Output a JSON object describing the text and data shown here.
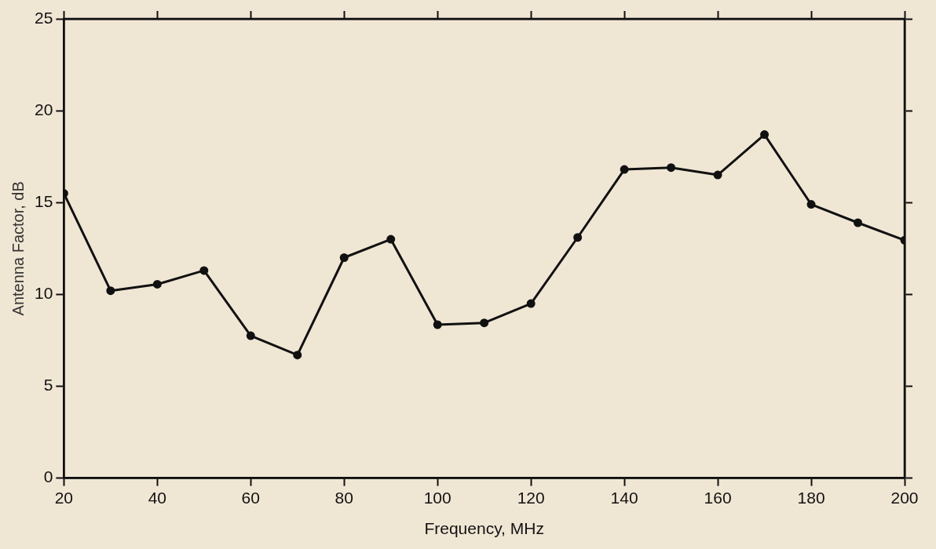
{
  "chart_data": {
    "type": "line",
    "xlabel": "Frequency, MHz",
    "ylabel": "Antenna Factor, dB",
    "x": [
      20,
      30,
      40,
      50,
      60,
      70,
      80,
      90,
      100,
      110,
      120,
      130,
      140,
      150,
      160,
      170,
      180,
      190,
      200
    ],
    "series": [
      {
        "color": "#111111",
        "values": [
          15.5,
          10.2,
          10.55,
          11.3,
          7.75,
          6.7,
          12.0,
          13.0,
          8.35,
          8.45,
          9.5,
          13.1,
          16.8,
          16.9,
          16.5,
          18.7,
          14.9,
          13.9,
          12.95
        ]
      }
    ],
    "xlim": [
      20,
      200
    ],
    "xticks": [
      20,
      40,
      60,
      80,
      100,
      120,
      140,
      160,
      180,
      200
    ],
    "ylim": [
      0,
      25
    ],
    "yticks": [
      0,
      5,
      10,
      15,
      20,
      25
    ],
    "grid": false,
    "legend": false,
    "marker": "circle",
    "line_style": "solid"
  }
}
